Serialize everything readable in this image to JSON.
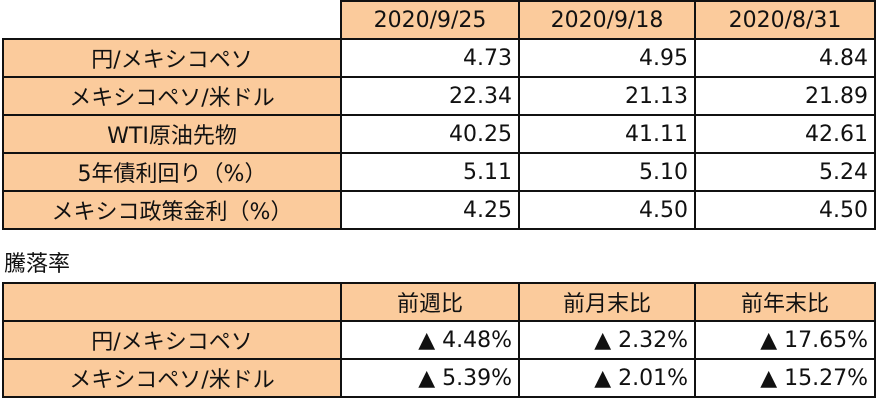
{
  "rates_table": {
    "headers": [
      "2020/9/25",
      "2020/9/18",
      "2020/8/31"
    ],
    "rows": [
      {
        "label": "円/メキシコペソ",
        "values": [
          "4.73",
          "4.95",
          "4.84"
        ]
      },
      {
        "label": "メキシコペソ/米ドル",
        "values": [
          "22.34",
          "21.13",
          "21.89"
        ]
      },
      {
        "label": "WTI原油先物",
        "values": [
          "40.25",
          "41.11",
          "42.61"
        ]
      },
      {
        "label": "5年債利回り（%）",
        "values": [
          "5.11",
          "5.10",
          "5.24"
        ]
      },
      {
        "label": "メキシコ政策金利（%）",
        "values": [
          "4.25",
          "4.50",
          "4.50"
        ]
      }
    ]
  },
  "change_table": {
    "title": "騰落率",
    "headers": [
      "前週比",
      "前月末比",
      "前年末比"
    ],
    "rows": [
      {
        "label": "円/メキシコペソ",
        "values": [
          "▲ 4.48%",
          "▲ 2.32%",
          "▲ 17.65%"
        ]
      },
      {
        "label": "メキシコペソ/米ドル",
        "values": [
          "▲ 5.39%",
          "▲ 2.01%",
          "▲ 15.27%"
        ]
      }
    ]
  },
  "colors": {
    "header_bg": "#FBCB9C",
    "border": "#111111"
  }
}
